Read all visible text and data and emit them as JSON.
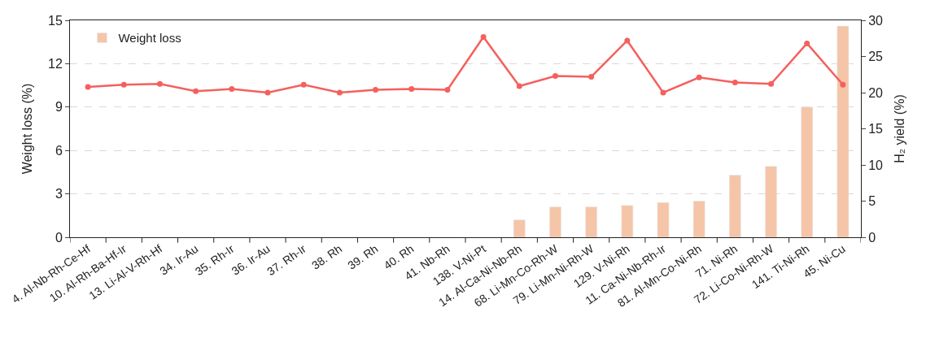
{
  "chart_data": {
    "type": "bar",
    "categories": [
      "4. Al-Nb-Rh-Ce-Hf",
      "10. Al-Rh-Ba-Hf-Ir",
      "13. Li-Al-V-Rh-Hf",
      "34. Ir-Au",
      "35. Rh-Ir",
      "36. Ir-Au",
      "37. Rh-Ir",
      "38. Rh",
      "39. Rh",
      "40. Rh",
      "41. Nb-Rh",
      "138. V-Ni-Pt",
      "14. Al-Ca-Ni-Nb-Rh",
      "68. Li-Mn-Co-Rh-W",
      "79. Li-Mn-Ni-Rh-W",
      "129. V-Ni-Rh",
      "11. Ca-Ni-Nb-Rh-Ir",
      "81. Al-Mn-Co-Ni-Rh",
      "71. Ni-Rh",
      "72. Li-Co-Ni-Rh-W",
      "141. Ti-Ni-Rh",
      "45. Ni-Cu"
    ],
    "series": [
      {
        "name": "Weight loss",
        "color": "#f5c5a8",
        "values": [
          null,
          null,
          null,
          null,
          null,
          null,
          null,
          null,
          null,
          null,
          null,
          null,
          1.2,
          2.1,
          2.1,
          2.2,
          2.4,
          2.5,
          4.3,
          4.9,
          9.0,
          14.6
        ]
      },
      {
        "type": "line",
        "axis": "y2",
        "color": "#f4605e",
        "values": [
          20.8,
          21.1,
          21.2,
          20.2,
          20.5,
          20.0,
          21.1,
          20.0,
          20.4,
          20.5,
          20.4,
          27.7,
          20.9,
          22.3,
          22.2,
          27.2,
          20.0,
          22.1,
          21.4,
          21.2,
          26.8,
          21.1
        ]
      }
    ],
    "ylabel": "Weight loss (%)",
    "y2label": "H₂ yield (%)",
    "ylim": [
      0,
      15
    ],
    "yticks": [
      0,
      3,
      6,
      9,
      12,
      15
    ],
    "y2lim": [
      0,
      30
    ],
    "y2ticks": [
      0,
      5,
      10,
      15,
      20,
      25,
      30
    ],
    "grid": "y",
    "legend": "top left",
    "marker": "circle",
    "line_style": "solid"
  }
}
